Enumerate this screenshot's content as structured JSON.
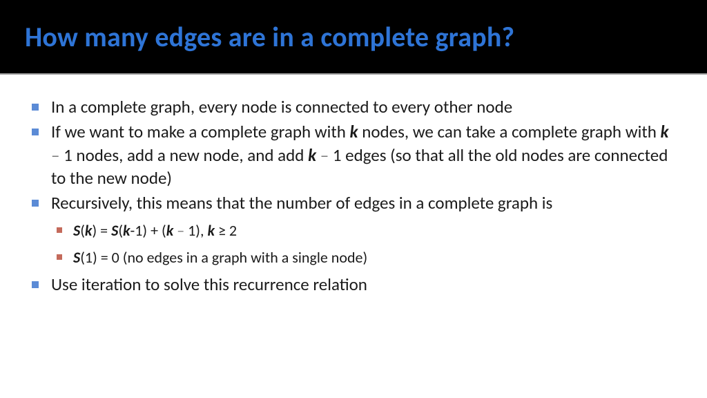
{
  "slide": {
    "title": "How many edges are in a complete graph?",
    "colors": {
      "header_bg": "#000000",
      "title_color": "#2e74d6",
      "body_bg": "#ffffff",
      "text_color": "#1a1a1a",
      "bullet1_color": "#5b8bd6",
      "bullet2_color": "#c46a5b",
      "minus_color": "#7a7a7a"
    },
    "typography": {
      "title_fontsize": 40,
      "body_fontsize": 25,
      "sub_fontsize": 22,
      "font_family": "Calibri"
    },
    "bullets": [
      {
        "text_parts": [
          {
            "t": "In a complete graph, every node is connected to every other node"
          }
        ]
      },
      {
        "text_parts": [
          {
            "t": "If we want to make a complete graph with "
          },
          {
            "t": "k",
            "style": "kvar"
          },
          {
            "t": " nodes, we can take a complete graph with "
          },
          {
            "t": "k",
            "style": "kvar"
          },
          {
            "t": " – ",
            "style": "minus"
          },
          {
            "t": "1 nodes, add a new node, and add "
          },
          {
            "t": "k",
            "style": "kvar"
          },
          {
            "t": " – ",
            "style": "minus"
          },
          {
            "t": "1 edges (so that all the old nodes are connected to the new node)"
          }
        ]
      },
      {
        "text_parts": [
          {
            "t": "Recursively, this means that the number of edges in a complete graph is"
          }
        ],
        "children": [
          {
            "text_parts": [
              {
                "t": "S",
                "style": "svar"
              },
              {
                "t": "("
              },
              {
                "t": "k",
                "style": "kvar"
              },
              {
                "t": ") = "
              },
              {
                "t": "S",
                "style": "svar"
              },
              {
                "t": "("
              },
              {
                "t": "k",
                "style": "kvar"
              },
              {
                "t": "-1) + ("
              },
              {
                "t": "k",
                "style": "kvar"
              },
              {
                "t": " – ",
                "style": "minus"
              },
              {
                "t": "1), "
              },
              {
                "t": "k",
                "style": "kvar"
              },
              {
                "t": " ≥ 2"
              }
            ]
          },
          {
            "text_parts": [
              {
                "t": "S",
                "style": "svar"
              },
              {
                "t": "(1)  = 0  (no edges in a graph with a single node)"
              }
            ]
          }
        ]
      },
      {
        "text_parts": [
          {
            "t": "Use iteration to solve this recurrence relation"
          }
        ]
      }
    ]
  }
}
